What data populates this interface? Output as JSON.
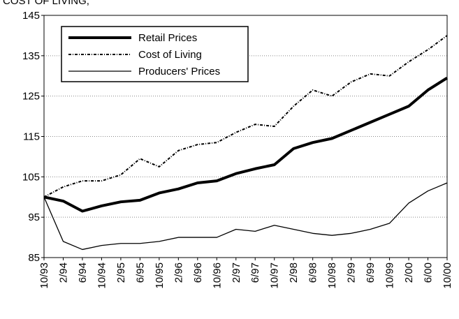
{
  "chart_data": {
    "type": "line",
    "title": "COST OF LIVING,",
    "categories": [
      "10/93",
      "2/94",
      "6/94",
      "10/94",
      "2/95",
      "6/95",
      "10/95",
      "2/96",
      "6/96",
      "10/96",
      "2/97",
      "6/97",
      "10/97",
      "2/98",
      "6/98",
      "10/98",
      "2/99",
      "6/99",
      "10/99",
      "2/00",
      "6/00",
      "10/00"
    ],
    "series": [
      {
        "name": "Retail Prices",
        "color": "#000000",
        "width": 4,
        "dash": "none",
        "values": [
          100,
          99,
          96.5,
          97.8,
          98.8,
          99.2,
          101,
          102,
          103.5,
          104,
          105.8,
          107,
          108,
          112,
          113.5,
          114.5,
          116.5,
          118.5,
          120.5,
          122.5,
          126.5,
          129.5
        ]
      },
      {
        "name": "Cost of Living",
        "color": "#000000",
        "width": 2,
        "dash": "4 2 1 2",
        "values": [
          100,
          102.5,
          104,
          104,
          105.5,
          109.5,
          107.5,
          111.5,
          113,
          113.5,
          116,
          118,
          117.5,
          122.5,
          126.5,
          125,
          128.5,
          130.5,
          130,
          133.5,
          136.5,
          140
        ]
      },
      {
        "name": "Producers' Prices",
        "color": "#000000",
        "width": 1.3,
        "dash": "none",
        "values": [
          100,
          89,
          87,
          88,
          88.5,
          88.5,
          89,
          90,
          90,
          90,
          92,
          91.5,
          93,
          92,
          91,
          90.5,
          91,
          92,
          93.5,
          98.5,
          101.5,
          103.5
        ]
      }
    ],
    "ylim": [
      85,
      145
    ],
    "yticks": [
      85,
      95,
      105,
      115,
      125,
      135,
      145
    ],
    "grid": true,
    "legend": "upper left"
  }
}
